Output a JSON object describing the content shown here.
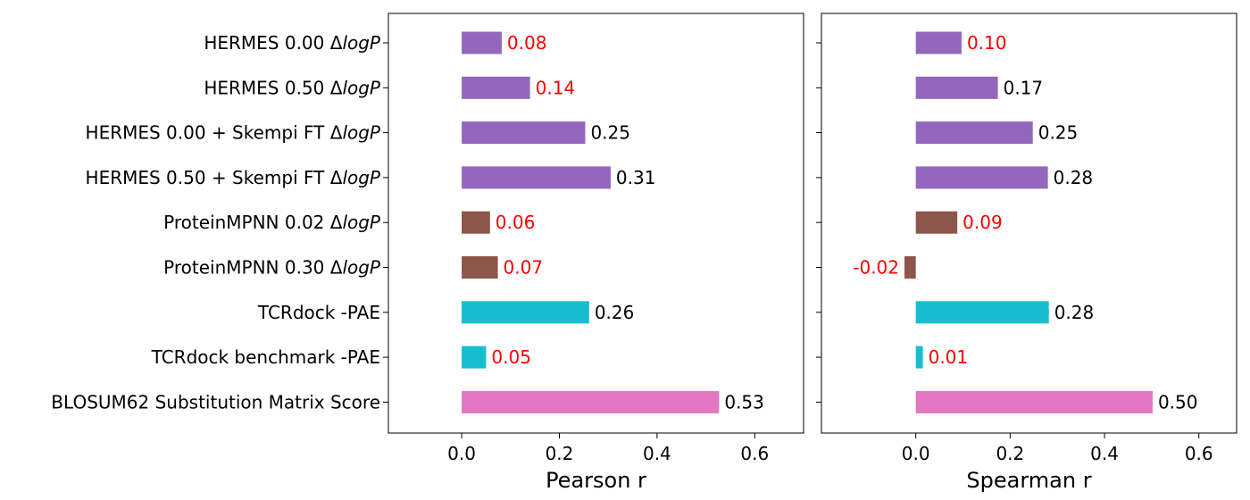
{
  "chart_data": {
    "type": "bar",
    "orientation": "horizontal",
    "categories": [
      {
        "name": "HERMES 0.00",
        "suffix": "logP",
        "color": "#9467bd"
      },
      {
        "name": "HERMES 0.50",
        "suffix": "logP",
        "color": "#9467bd"
      },
      {
        "name": "HERMES 0.00 + Skempi FT",
        "suffix": "logP",
        "color": "#9467bd"
      },
      {
        "name": "HERMES 0.50 + Skempi FT",
        "suffix": "logP",
        "color": "#9467bd"
      },
      {
        "name": "ProteinMPNN 0.02",
        "suffix": "logP",
        "color": "#8c564b"
      },
      {
        "name": "ProteinMPNN 0.30",
        "suffix": "logP",
        "color": "#8c564b"
      },
      {
        "name": "TCRdock -PAE",
        "suffix": "",
        "color": "#17becf"
      },
      {
        "name": "TCRdock benchmark -PAE",
        "suffix": "",
        "color": "#17becf"
      },
      {
        "name": "BLOSUM62 Substitution Matrix Score",
        "suffix": "",
        "color": "#e377c2"
      }
    ],
    "panels": [
      {
        "xlabel": "Pearson r",
        "xlim": [
          -0.15,
          0.7
        ],
        "xticks": [
          "0.0",
          "0.2",
          "0.4",
          "0.6"
        ],
        "values": [
          0.082,
          0.14,
          0.253,
          0.305,
          0.058,
          0.074,
          0.261,
          0.05,
          0.527
        ],
        "labels": [
          "0.08",
          "0.14",
          "0.25",
          "0.31",
          "0.06",
          "0.07",
          "0.26",
          "0.05",
          "0.53"
        ],
        "label_colors": [
          "#ff0000",
          "#ff0000",
          "#000000",
          "#000000",
          "#ff0000",
          "#ff0000",
          "#000000",
          "#ff0000",
          "#000000"
        ]
      },
      {
        "xlabel": "Spearman r",
        "xlim": [
          -0.2,
          0.68
        ],
        "xticks": [
          "0.0",
          "0.2",
          "0.4",
          "0.6"
        ],
        "values": [
          0.097,
          0.174,
          0.248,
          0.28,
          0.088,
          -0.024,
          0.282,
          0.015,
          0.502
        ],
        "labels": [
          "0.10",
          "0.17",
          "0.25",
          "0.28",
          "0.09",
          "-0.02",
          "0.28",
          "0.01",
          "0.50"
        ],
        "label_colors": [
          "#ff0000",
          "#000000",
          "#000000",
          "#000000",
          "#ff0000",
          "#ff0000",
          "#000000",
          "#ff0000",
          "#000000"
        ]
      }
    ],
    "delta_symbol": "Δ",
    "grid": false,
    "legend": "none"
  }
}
